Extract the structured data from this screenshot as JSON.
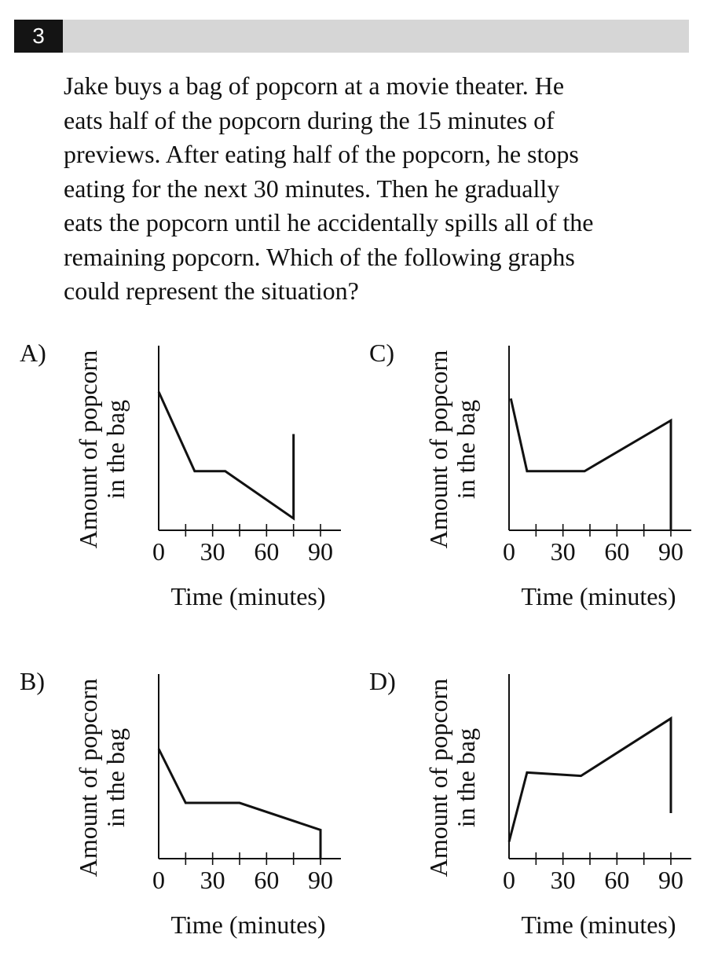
{
  "question": {
    "number": "3",
    "lines": [
      "Jake buys a bag of popcorn at a movie theater. He",
      "eats half of the popcorn during the 15 minutes of",
      "previews. After eating half of the popcorn, he stops",
      "eating for the next 30 minutes. Then he gradually",
      "eats the popcorn until he accidentally spills all of the",
      "remaining popcorn. Which of the following graphs",
      "could represent the situation?"
    ]
  },
  "chart_data": [
    {
      "type": "line",
      "choice": "A)",
      "xlabel": "Time (minutes)",
      "ylabel": [
        "Amount of popcorn",
        "in the bag"
      ],
      "x_ticks": [
        0,
        30,
        60,
        90
      ],
      "xlim": [
        0,
        100
      ],
      "ylim": [
        0,
        100
      ],
      "grid": false,
      "points": [
        [
          0,
          82
        ],
        [
          20,
          35
        ],
        [
          37,
          35
        ],
        [
          75,
          7
        ],
        [
          75,
          57
        ]
      ]
    },
    {
      "type": "line",
      "choice": "B)",
      "xlabel": "Time (minutes)",
      "ylabel": [
        "Amount of popcorn",
        "in the bag"
      ],
      "x_ticks": [
        0,
        30,
        60,
        90
      ],
      "xlim": [
        0,
        100
      ],
      "ylim": [
        0,
        100
      ],
      "grid": false,
      "points": [
        [
          0,
          65
        ],
        [
          15,
          33
        ],
        [
          45,
          33
        ],
        [
          90,
          17
        ],
        [
          90,
          0
        ]
      ]
    },
    {
      "type": "line",
      "choice": "C)",
      "xlabel": "Time (minutes)",
      "ylabel": [
        "Amount of popcorn",
        "in the bag"
      ],
      "x_ticks": [
        0,
        30,
        60,
        90
      ],
      "xlim": [
        0,
        100
      ],
      "ylim": [
        0,
        100
      ],
      "grid": false,
      "points": [
        [
          1,
          78
        ],
        [
          10,
          35
        ],
        [
          42,
          35
        ],
        [
          90,
          65
        ],
        [
          90,
          0
        ]
      ]
    },
    {
      "type": "line",
      "choice": "D)",
      "xlabel": "Time (minutes)",
      "ylabel": [
        "Amount of popcorn",
        "in the bag"
      ],
      "x_ticks": [
        0,
        30,
        60,
        90
      ],
      "xlim": [
        0,
        100
      ],
      "ylim": [
        0,
        100
      ],
      "grid": false,
      "points": [
        [
          0,
          10
        ],
        [
          10,
          51
        ],
        [
          40,
          49
        ],
        [
          90,
          83
        ],
        [
          90,
          27
        ]
      ]
    }
  ]
}
